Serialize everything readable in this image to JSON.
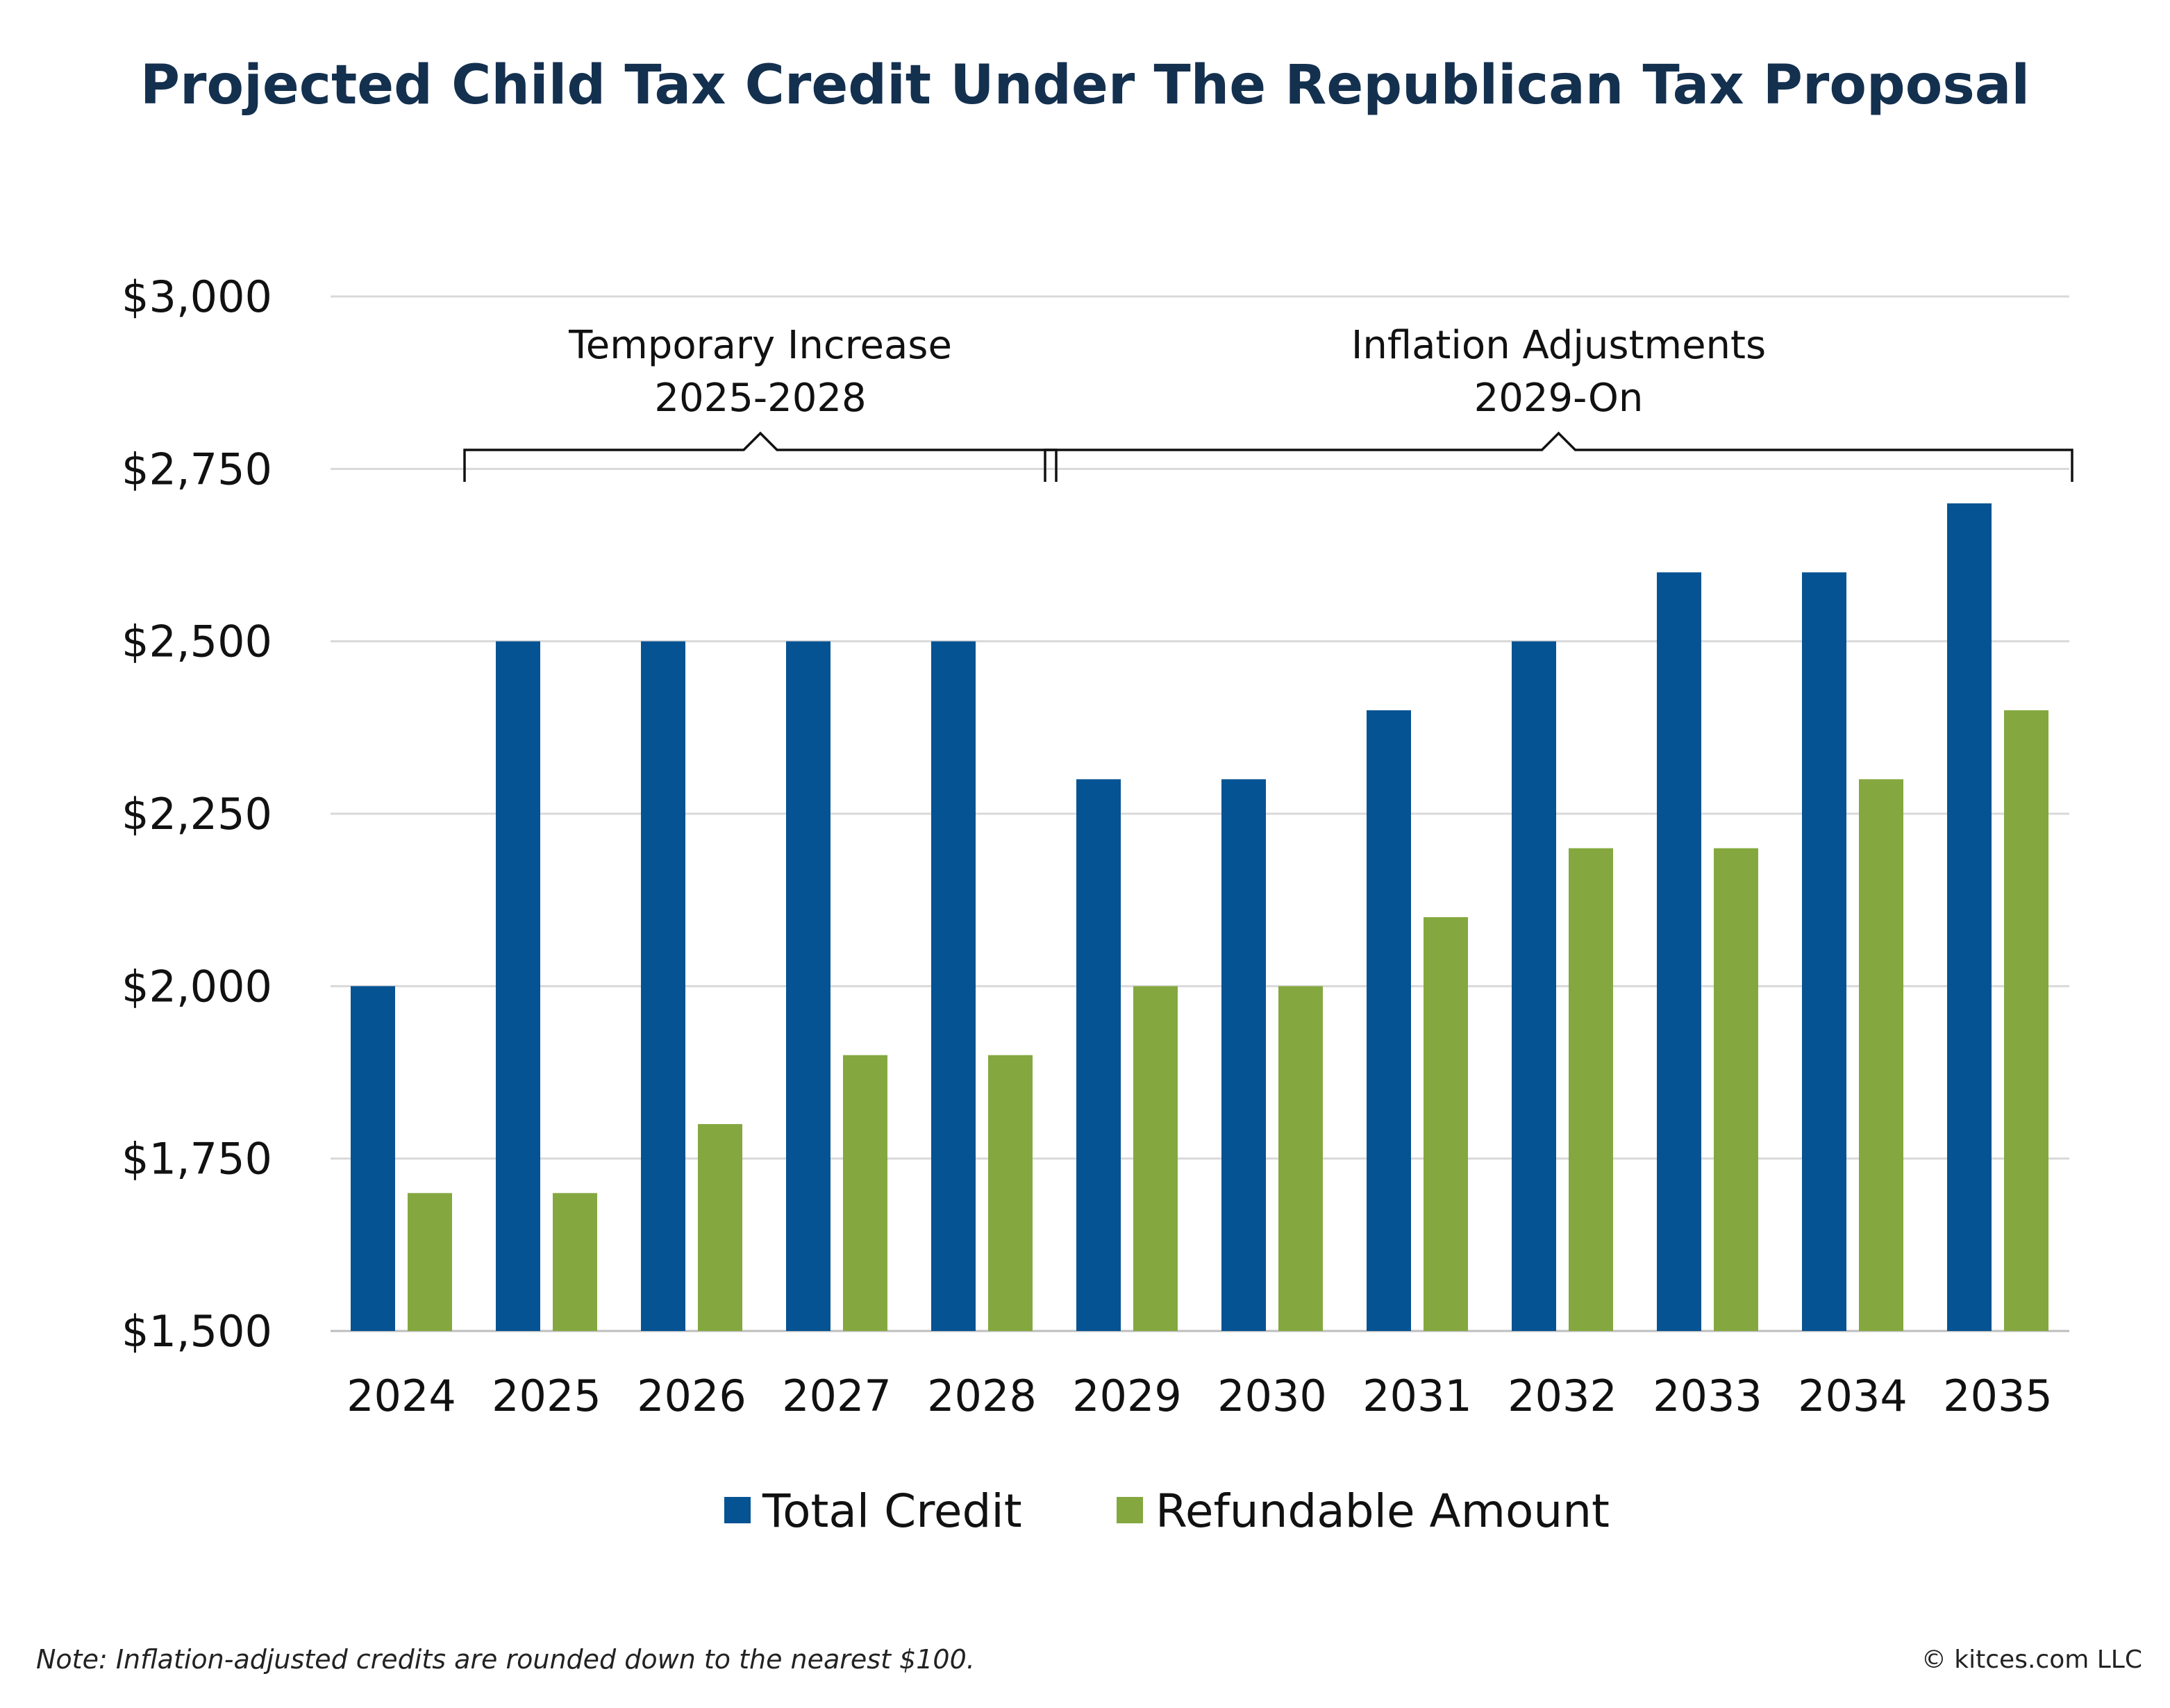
{
  "chart_data": {
    "type": "bar",
    "title": "Projected Child Tax Credit Under The Republican Tax Proposal",
    "categories": [
      "2024",
      "2025",
      "2026",
      "2027",
      "2028",
      "2029",
      "2030",
      "2031",
      "2032",
      "2033",
      "2034",
      "2035"
    ],
    "series": [
      {
        "name": "Total Credit",
        "color": "#065393",
        "values": [
          2000,
          2500,
          2500,
          2500,
          2500,
          2300,
          2300,
          2400,
          2500,
          2600,
          2600,
          2700
        ]
      },
      {
        "name": "Refundable Amount",
        "color": "#84a83f",
        "values": [
          1700,
          1700,
          1800,
          1900,
          1900,
          2000,
          2000,
          2100,
          2200,
          2200,
          2300,
          2400
        ]
      }
    ],
    "ylim": [
      1500,
      3000
    ],
    "yticks": [
      1500,
      1750,
      2000,
      2250,
      2500,
      2750,
      3000
    ],
    "ytick_labels": [
      "$1,500",
      "$1,750",
      "$2,000",
      "$2,250",
      "$2,500",
      "$2,750",
      "$3,000"
    ],
    "grid": true,
    "legend_position": "bottom",
    "annotations": [
      {
        "line1": "Temporary Increase",
        "line2": "2025-2028",
        "from": "2025",
        "to": "2028"
      },
      {
        "line1": "Inflation Adjustments",
        "line2": "2029-On",
        "from": "2029",
        "to": "2035"
      }
    ]
  },
  "footnote": "Note: Inflation-adjusted credits are rounded down to the nearest $100.",
  "copyright": "© kitces.com LLC"
}
